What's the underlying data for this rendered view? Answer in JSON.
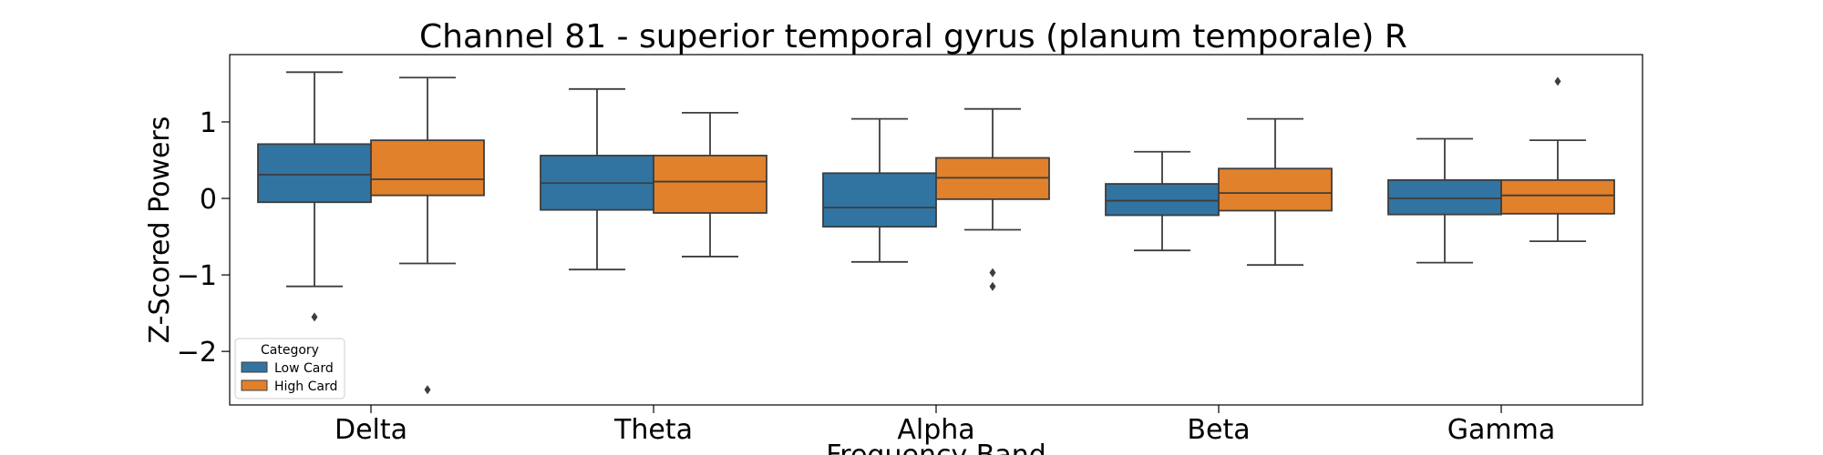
{
  "chart_data": {
    "type": "box",
    "title": "Channel 81 - superior temporal gyrus (planum temporale) R",
    "xlabel": "Frequency Band",
    "ylabel": "Z-Scored Powers",
    "categories": [
      "Delta",
      "Theta",
      "Alpha",
      "Beta",
      "Gamma"
    ],
    "yticks": [
      1,
      0,
      -1,
      -2
    ],
    "ytick_labels": [
      "1",
      "0",
      "−1",
      "−2"
    ],
    "ylim": [
      -2.7,
      1.88
    ],
    "grid": false,
    "legend": {
      "title": "Category",
      "placement": "lower-left"
    },
    "series": [
      {
        "name": "Low Card",
        "color": "#3274a1",
        "boxes": [
          {
            "whislo": -1.15,
            "q1": -0.05,
            "med": 0.31,
            "q3": 0.71,
            "whishi": 1.65,
            "fliers": [
              -1.55
            ]
          },
          {
            "whislo": -0.93,
            "q1": -0.15,
            "med": 0.2,
            "q3": 0.56,
            "whishi": 1.43,
            "fliers": []
          },
          {
            "whislo": -0.83,
            "q1": -0.37,
            "med": -0.12,
            "q3": 0.33,
            "whishi": 1.04,
            "fliers": []
          },
          {
            "whislo": -0.68,
            "q1": -0.22,
            "med": -0.03,
            "q3": 0.19,
            "whishi": 0.61,
            "fliers": []
          },
          {
            "whislo": -0.84,
            "q1": -0.21,
            "med": 0.0,
            "q3": 0.24,
            "whishi": 0.78,
            "fliers": []
          }
        ]
      },
      {
        "name": "High Card",
        "color": "#e1812c",
        "boxes": [
          {
            "whislo": -0.85,
            "q1": 0.04,
            "med": 0.25,
            "q3": 0.76,
            "whishi": 1.58,
            "fliers": [
              -2.5
            ]
          },
          {
            "whislo": -0.76,
            "q1": -0.19,
            "med": 0.22,
            "q3": 0.56,
            "whishi": 1.12,
            "fliers": []
          },
          {
            "whislo": -0.41,
            "q1": -0.01,
            "med": 0.27,
            "q3": 0.53,
            "whishi": 1.17,
            "fliers": [
              -0.97,
              -1.15
            ]
          },
          {
            "whislo": -0.87,
            "q1": -0.16,
            "med": 0.07,
            "q3": 0.39,
            "whishi": 1.04,
            "fliers": []
          },
          {
            "whislo": -0.56,
            "q1": -0.2,
            "med": 0.04,
            "q3": 0.24,
            "whishi": 0.76,
            "fliers": [
              1.53
            ]
          }
        ]
      }
    ]
  }
}
